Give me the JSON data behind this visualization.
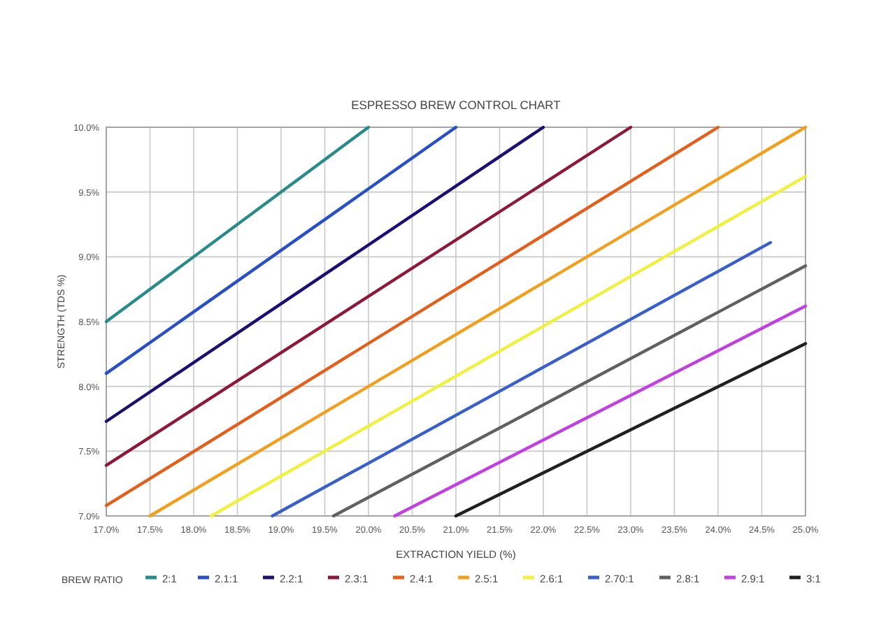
{
  "chart_data": {
    "type": "line",
    "title": "ESPRESSO BREW CONTROL CHART",
    "xlabel": "EXTRACTION YIELD (%)",
    "ylabel": "STRENGTH (TDS %)",
    "legend_title": "BREW RATIO",
    "legend": "bottom",
    "grid": true,
    "marker": "none",
    "line_style": "solid",
    "xlim": [
      17,
      25
    ],
    "ylim": [
      7,
      10
    ],
    "xticks": [
      {
        "value": 17,
        "label": "17.0%"
      },
      {
        "value": 17.5,
        "label": "17.5%"
      },
      {
        "value": 18,
        "label": "18.0%"
      },
      {
        "value": 18.5,
        "label": "18.5%"
      },
      {
        "value": 19,
        "label": "19.0%"
      },
      {
        "value": 19.5,
        "label": "19.5%"
      },
      {
        "value": 20,
        "label": "20.0%"
      },
      {
        "value": 20.5,
        "label": "20.5%"
      },
      {
        "value": 21,
        "label": "21.0%"
      },
      {
        "value": 21.5,
        "label": "21.5%"
      },
      {
        "value": 22,
        "label": "22.0%"
      },
      {
        "value": 22.5,
        "label": "22.5%"
      },
      {
        "value": 23,
        "label": "23.0%"
      },
      {
        "value": 23.5,
        "label": "23.5%"
      },
      {
        "value": 24,
        "label": "24.0%"
      },
      {
        "value": 24.5,
        "label": "24.5%"
      },
      {
        "value": 25,
        "label": "25.0%"
      }
    ],
    "yticks": [
      {
        "value": 7,
        "label": "7.0%"
      },
      {
        "value": 7.5,
        "label": "7.5%"
      },
      {
        "value": 8,
        "label": "8.0%"
      },
      {
        "value": 8.5,
        "label": "8.5%"
      },
      {
        "value": 9,
        "label": "9.0%"
      },
      {
        "value": 9.5,
        "label": "9.5%"
      },
      {
        "value": 10,
        "label": "10.0%"
      }
    ],
    "series": [
      {
        "name": "2:1",
        "color": "#2a8a8a",
        "x": [
          17,
          20
        ],
        "values": [
          8.5,
          10
        ]
      },
      {
        "name": "2.1:1",
        "color": "#2a4fc0",
        "x": [
          17,
          21
        ],
        "values": [
          8.1,
          10
        ]
      },
      {
        "name": "2.2:1",
        "color": "#1a1070",
        "x": [
          17,
          22
        ],
        "values": [
          7.73,
          10
        ]
      },
      {
        "name": "2.3:1",
        "color": "#8b1a3a",
        "x": [
          17,
          23
        ],
        "values": [
          7.39,
          10
        ]
      },
      {
        "name": "2.4:1",
        "color": "#e06020",
        "x": [
          17,
          24
        ],
        "values": [
          7.08,
          10
        ]
      },
      {
        "name": "2.5:1",
        "color": "#f0a020",
        "x": [
          17.5,
          25
        ],
        "values": [
          7,
          10
        ]
      },
      {
        "name": "2.6:1",
        "color": "#f0f040",
        "x": [
          18.2,
          25
        ],
        "values": [
          7,
          9.62
        ]
      },
      {
        "name": "2.70:1",
        "color": "#3a60c8",
        "x": [
          18.9,
          24.6
        ],
        "values": [
          7,
          9.11
        ]
      },
      {
        "name": "2.8:1",
        "color": "#606060",
        "x": [
          19.6,
          25
        ],
        "values": [
          7,
          8.93
        ]
      },
      {
        "name": "2.9:1",
        "color": "#c040e0",
        "x": [
          20.3,
          25
        ],
        "values": [
          7,
          8.62
        ]
      },
      {
        "name": "3:1",
        "color": "#202020",
        "x": [
          21,
          25
        ],
        "values": [
          7,
          8.33
        ]
      }
    ]
  }
}
